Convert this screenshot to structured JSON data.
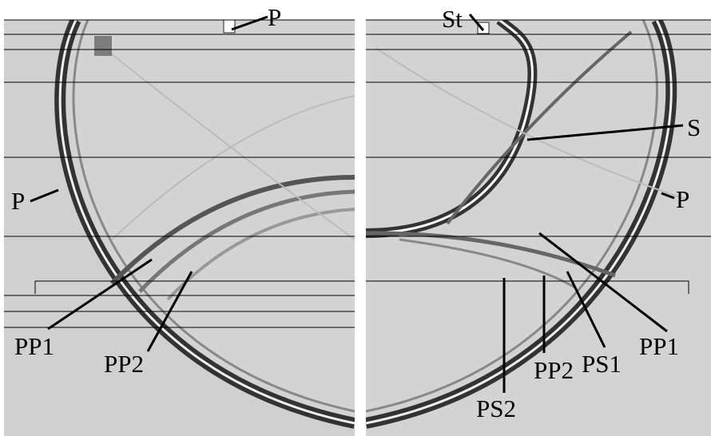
{
  "panels": [
    {
      "labels": [
        "P",
        "P",
        "PP1",
        "PP2"
      ]
    },
    {
      "labels": [
        "St",
        "S",
        "P",
        "PP1",
        "PS1",
        "PS2",
        "PP2"
      ]
    }
  ]
}
